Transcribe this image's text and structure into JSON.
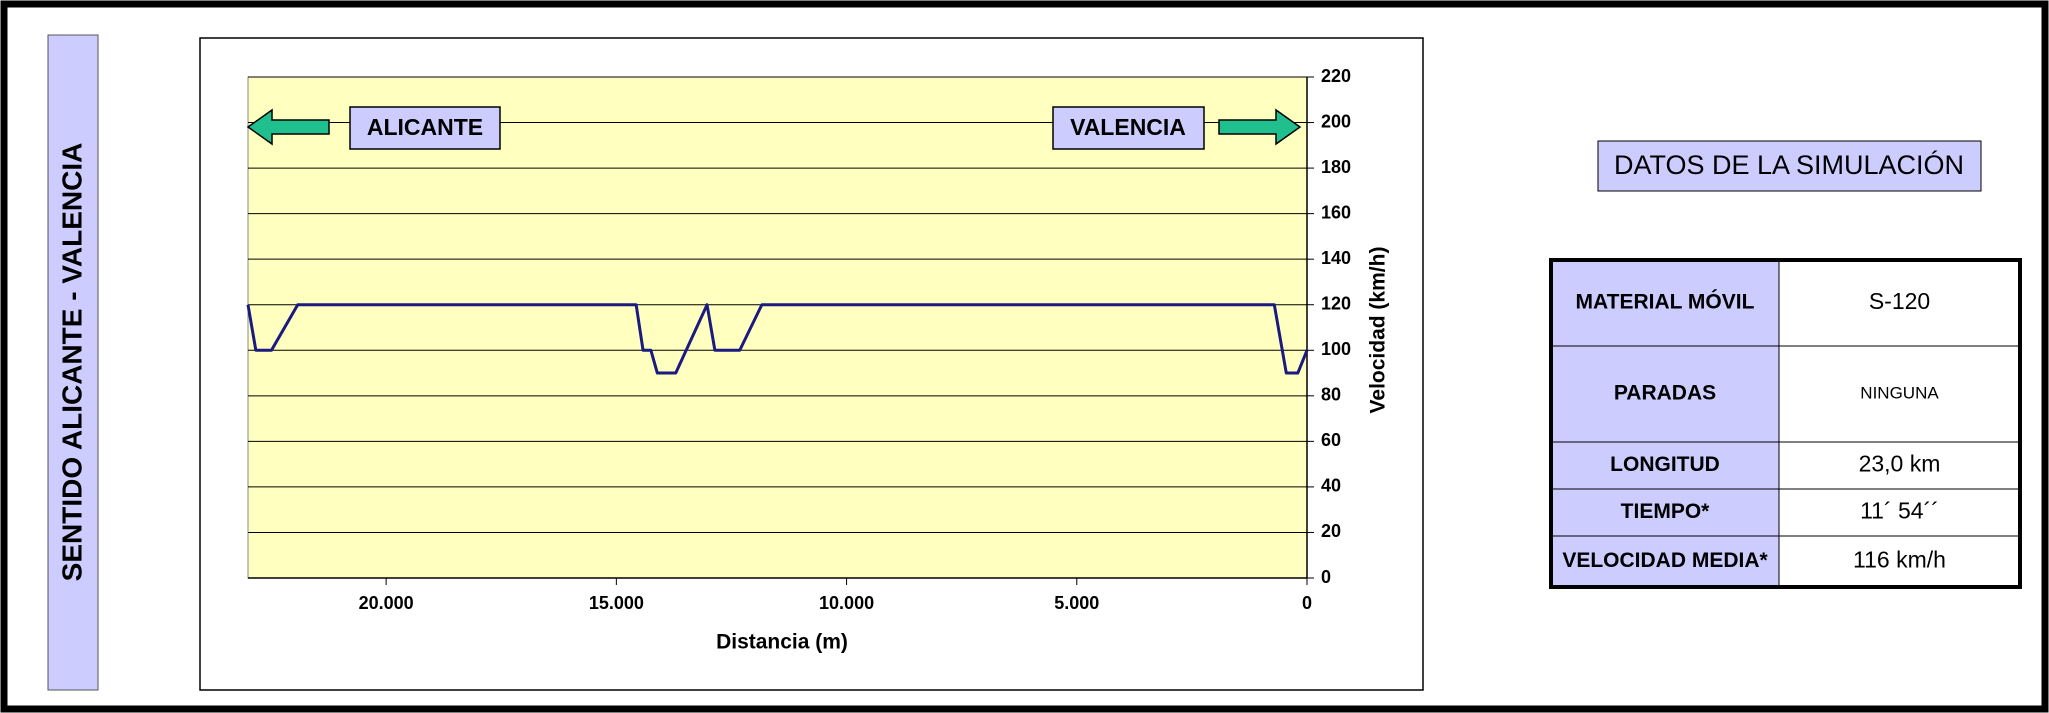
{
  "side_label": "SENTIDO ALICANTE - VALENCIA",
  "chart_data": {
    "type": "line",
    "x": [
      23000,
      22830,
      22490,
      21920,
      14570,
      14420,
      14250,
      14110,
      13710,
      13030,
      12860,
      12320,
      11840,
      710,
      450,
      200,
      0
    ],
    "values": [
      120,
      100,
      100,
      120,
      120,
      100,
      100,
      90,
      90,
      120,
      100,
      100,
      120,
      120,
      90,
      90,
      100
    ],
    "color": "#1a1a80",
    "xlim": [
      23000,
      0
    ],
    "xticks": [
      {
        "value": 20000,
        "label": "20.000"
      },
      {
        "value": 15000,
        "label": "15.000"
      },
      {
        "value": 10000,
        "label": "10.000"
      },
      {
        "value": 5000,
        "label": "5.000"
      },
      0
    ],
    "ylim": [
      0,
      220
    ],
    "yticks": [
      0,
      20,
      40,
      60,
      80,
      100,
      120,
      140,
      160,
      180,
      200,
      220
    ],
    "grid": true,
    "x_label": "Distancia (m)",
    "y_label": "Velocidad (km/h)",
    "annotations": [
      "ALICANTE",
      "VALENCIA"
    ]
  },
  "table": {
    "title": "DATOS DE LA SIMULACIÓN",
    "rows": [
      [
        "MATERIAL MÓVIL",
        "S-120"
      ],
      [
        "PARADAS",
        "NINGUNA"
      ],
      [
        "LONGITUD",
        "23,0 km"
      ],
      [
        "TIEMPO*",
        "11´ 54´´"
      ],
      [
        "VELOCIDAD MEDIA*",
        "116 km/h"
      ]
    ]
  }
}
